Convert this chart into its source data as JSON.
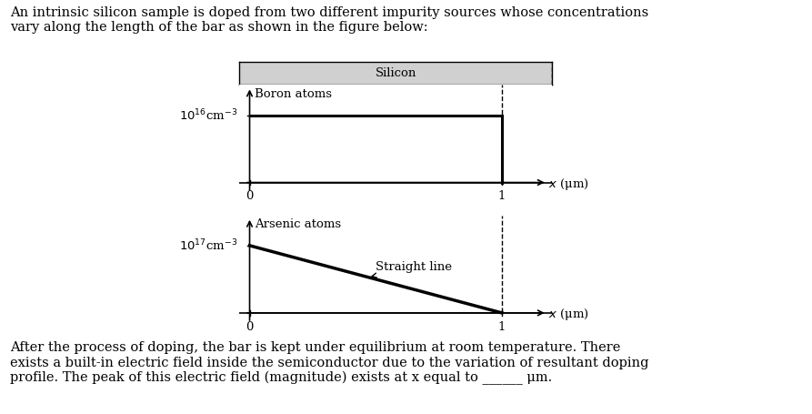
{
  "background_color": "#ffffff",
  "text_color": "#000000",
  "paragraph1": "An intrinsic silicon sample is doped from two different impurity sources whose concentrations\nvary along the length of the bar as shown in the figure below:",
  "paragraph2": "After the process of doping, the bar is kept under equilibrium at room temperature. There\nexists a built-in electric field inside the semiconductor due to the variation of resultant doping\nprofile. The peak of this electric field (magnitude) exists at x equal to ______ μm.",
  "silicon_label": "Silicon",
  "silicon_box_color": "#d0d0d0",
  "boron_label": "Boron atoms",
  "boron_ylabel": "$10^{16}$cm$^{-3}$",
  "arsenic_ylabel": "$10^{17}$cm$^{-3}$",
  "xlabel": " x (μm)",
  "arsenic_label": "Arsenic atoms",
  "straight_line_label": "Straight line",
  "plot_font_size": 9.5,
  "text_font_size": 10.5
}
